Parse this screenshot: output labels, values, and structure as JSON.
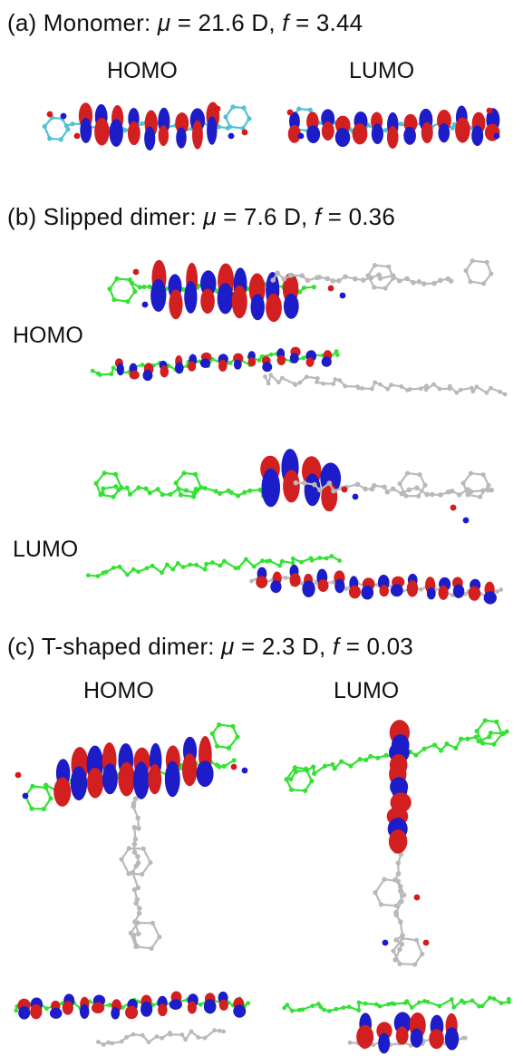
{
  "panels": {
    "a": {
      "prefix": "(a) Monomer: ",
      "mu_symbol": "μ",
      "mu_text": " = 21.6 D, ",
      "f_symbol": "f",
      "f_text": " = 3.44",
      "labels": [
        "HOMO",
        "LUMO"
      ]
    },
    "b": {
      "prefix": "(b) Slipped dimer: ",
      "mu_symbol": "μ",
      "mu_text": " = 7.6 D,  ",
      "f_symbol": "f",
      "f_text": " = 0.36",
      "labels": [
        "HOMO",
        "LUMO"
      ]
    },
    "c": {
      "prefix": "(c) T-shaped dimer: ",
      "mu_symbol": "μ",
      "mu_text": " = 2.3 D,  ",
      "f_symbol": "f",
      "f_text": " = 0.03",
      "labels": [
        "HOMO",
        "LUMO"
      ]
    }
  },
  "colors": {
    "lobe_positive": "#d21f1f",
    "lobe_negative": "#1c1cc8",
    "monomer_carbon": "#4fc3d0",
    "molecule_green": "#33e233",
    "molecule_gray": "#b9b9b9",
    "oxygen": "#d61a1a",
    "nitrogen": "#1a1ad6"
  }
}
